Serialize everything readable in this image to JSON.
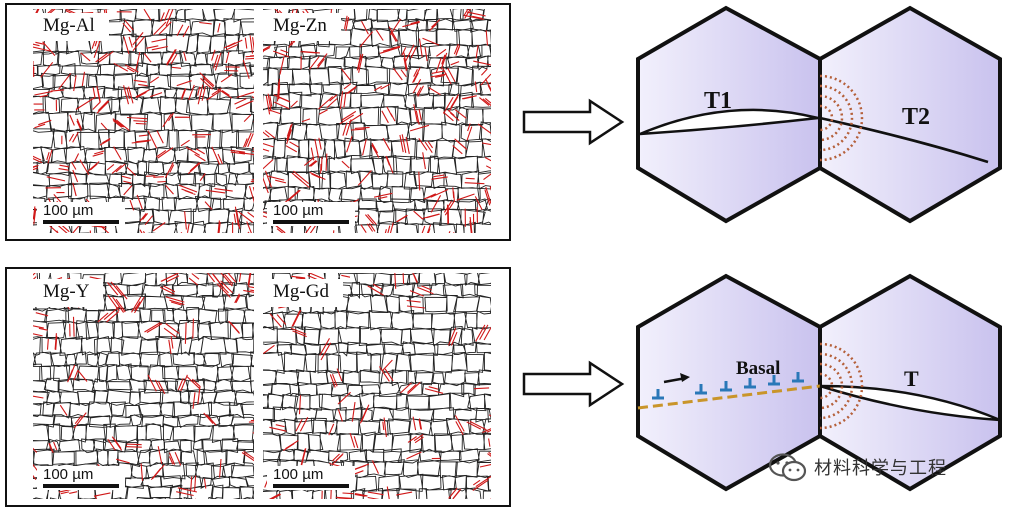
{
  "top_panel": {
    "left": {
      "label": "Mg-Al",
      "scale": "100 µm"
    },
    "right": {
      "label": "Mg-Zn",
      "scale": "100 µm"
    }
  },
  "bottom_panel": {
    "left": {
      "label": "Mg-Y",
      "scale": "100 µm"
    },
    "right": {
      "label": "Mg-Gd",
      "scale": "100 µm"
    }
  },
  "top_schematic": {
    "twin_left": "T1",
    "twin_right": "T2"
  },
  "bottom_schematic": {
    "plane_label": "Basal",
    "twin": "T"
  },
  "watermark": {
    "text": "材料科学与工程",
    "icon": "wechat-icon"
  },
  "colors": {
    "grain_boundary": "#222222",
    "twin_boundary": "#d01818",
    "hex_fill": "#e4e0f6",
    "dislocation": "#2a78b8",
    "basal_line": "#c9952a",
    "stress_arcs": "#b5603a"
  }
}
